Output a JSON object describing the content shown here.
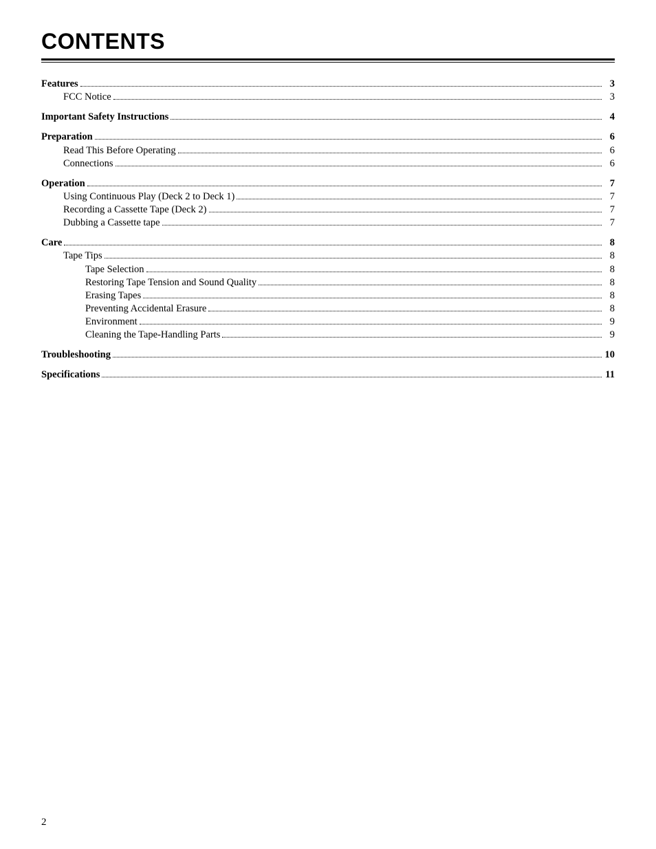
{
  "heading": "CONTENTS",
  "page_number": "2",
  "toc": [
    {
      "kind": "entry",
      "label": "Features",
      "page": "3",
      "indent": 0,
      "bold": true
    },
    {
      "kind": "entry",
      "label": "FCC Notice",
      "page": "3",
      "indent": 1,
      "bold": false
    },
    {
      "kind": "gap"
    },
    {
      "kind": "entry",
      "label": "Important Safety Instructions",
      "page": "4",
      "indent": 0,
      "bold": true
    },
    {
      "kind": "gap"
    },
    {
      "kind": "entry",
      "label": "Preparation",
      "page": "6",
      "indent": 0,
      "bold": true
    },
    {
      "kind": "entry",
      "label": "Read This Before Operating",
      "page": "6",
      "indent": 1,
      "bold": false
    },
    {
      "kind": "entry",
      "label": "Connections",
      "page": "6",
      "indent": 1,
      "bold": false
    },
    {
      "kind": "gap"
    },
    {
      "kind": "entry",
      "label": "Operation",
      "page": "7",
      "indent": 0,
      "bold": true
    },
    {
      "kind": "entry",
      "label": "Using Continuous Play (Deck 2 to Deck 1)",
      "page": "7",
      "indent": 1,
      "bold": false
    },
    {
      "kind": "entry",
      "label": "Recording a Cassette Tape (Deck 2)",
      "page": "7",
      "indent": 1,
      "bold": false
    },
    {
      "kind": "entry",
      "label": "Dubbing a Cassette tape",
      "page": "7",
      "indent": 1,
      "bold": false
    },
    {
      "kind": "gap"
    },
    {
      "kind": "entry",
      "label": "Care",
      "page": "8",
      "indent": 0,
      "bold": true
    },
    {
      "kind": "entry",
      "label": "Tape Tips",
      "page": "8",
      "indent": 1,
      "bold": false
    },
    {
      "kind": "entry",
      "label": "Tape Selection",
      "page": "8",
      "indent": 2,
      "bold": false
    },
    {
      "kind": "entry",
      "label": "Restoring Tape Tension and Sound Quality",
      "page": "8",
      "indent": 2,
      "bold": false
    },
    {
      "kind": "entry",
      "label": "Erasing Tapes",
      "page": "8",
      "indent": 2,
      "bold": false
    },
    {
      "kind": "entry",
      "label": "Preventing Accidental Erasure",
      "page": "8",
      "indent": 2,
      "bold": false
    },
    {
      "kind": "entry",
      "label": "Environment",
      "page": "9",
      "indent": 2,
      "bold": false
    },
    {
      "kind": "entry",
      "label": "Cleaning the Tape-Handling Parts",
      "page": "9",
      "indent": 2,
      "bold": false
    },
    {
      "kind": "gap"
    },
    {
      "kind": "entry",
      "label": "Troubleshooting",
      "page": "10",
      "indent": 0,
      "bold": true
    },
    {
      "kind": "gap"
    },
    {
      "kind": "entry",
      "label": "Specifications",
      "page": "11",
      "indent": 0,
      "bold": true
    }
  ]
}
